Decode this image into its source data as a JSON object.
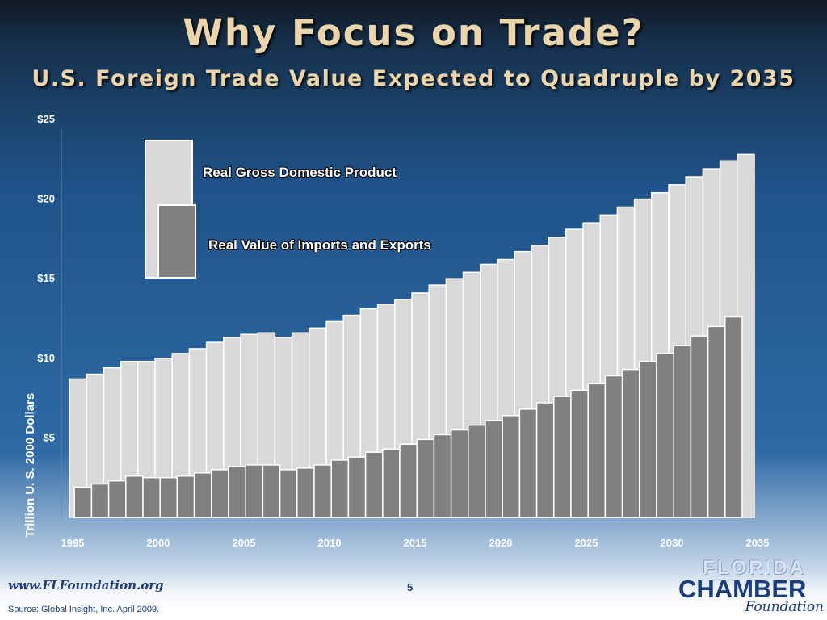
{
  "slide": {
    "title": "Why Focus on Trade?",
    "subtitle": "U.S. Foreign Trade Value Expected to Quadruple by 2035",
    "url": "www.FLFoundation.org",
    "page_number": "5",
    "source": "Source:  Global Insight, Inc. April 2009.",
    "logo": {
      "line1": "FLORIDA",
      "line2": "CHAMBER",
      "line3": "Foundation"
    }
  },
  "colors": {
    "gdp_fill": "#d9d9d9",
    "trade_fill": "#808080",
    "bar_edge": "#ffffff",
    "title_color": "#ead5ad"
  },
  "chart_data": {
    "type": "bar",
    "title": "",
    "xlabel": "",
    "ylabel": "Trillion U. S. 2000 Dollars",
    "ylim": [
      0,
      25
    ],
    "y_ticks": [
      "$5",
      "$10",
      "$15",
      "$20",
      "$25"
    ],
    "x_ticks": [
      "1995",
      "2000",
      "2005",
      "2010",
      "2015",
      "2020",
      "2025",
      "2030",
      "2035"
    ],
    "grid": false,
    "legend_position": "top-left",
    "x": [
      1995,
      1996,
      1997,
      1998,
      1999,
      2000,
      2001,
      2002,
      2003,
      2004,
      2005,
      2006,
      2007,
      2008,
      2009,
      2010,
      2011,
      2012,
      2013,
      2014,
      2015,
      2016,
      2017,
      2018,
      2019,
      2020,
      2021,
      2022,
      2023,
      2024,
      2025,
      2026,
      2027,
      2028,
      2029,
      2030,
      2031,
      2032,
      2033,
      2034,
      2035,
      2036
    ],
    "series": [
      {
        "name": "Real Gross Domestic Product",
        "values": [
          8.7,
          9.0,
          9.4,
          9.8,
          9.8,
          10.0,
          10.3,
          10.6,
          11.0,
          11.3,
          11.5,
          11.6,
          11.3,
          11.6,
          11.9,
          12.3,
          12.7,
          13.1,
          13.4,
          13.7,
          14.1,
          14.6,
          15.0,
          15.4,
          15.9,
          16.2,
          16.7,
          17.1,
          17.6,
          18.1,
          18.5,
          19.0,
          19.5,
          20.0,
          20.4,
          20.9,
          21.4,
          21.9,
          22.4,
          22.8,
          0,
          0
        ]
      },
      {
        "name": "Real Value of Imports and Exports",
        "values": [
          0,
          1.9,
          2.1,
          2.3,
          2.6,
          2.5,
          2.5,
          2.6,
          2.8,
          3.0,
          3.2,
          3.3,
          3.3,
          3.0,
          3.1,
          3.3,
          3.6,
          3.8,
          4.1,
          4.3,
          4.6,
          4.9,
          5.2,
          5.5,
          5.8,
          6.1,
          6.4,
          6.8,
          7.2,
          7.6,
          8.0,
          8.4,
          8.9,
          9.3,
          9.8,
          10.3,
          10.8,
          11.4,
          12.0,
          12.6,
          0,
          0
        ]
      }
    ]
  }
}
